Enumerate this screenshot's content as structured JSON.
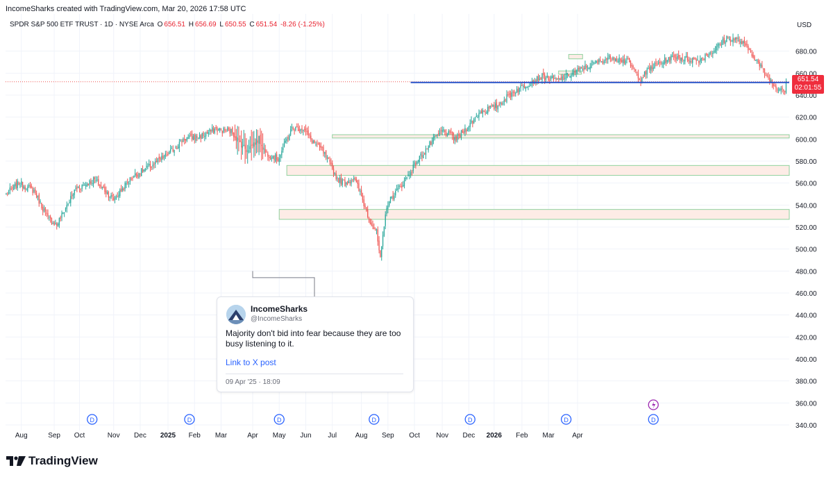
{
  "header": {
    "attribution": "IncomeSharks created with TradingView.com, Mar 20, 2026 17:58 UTC"
  },
  "symbol_bar": {
    "name": "SPDR S&P 500 ETF TRUST · 1D · NYSE Arca",
    "open_label": "O",
    "open": "656.51",
    "high_label": "H",
    "high": "656.69",
    "low_label": "L",
    "low": "650.55",
    "close_label": "C",
    "close": "651.54",
    "change": "-8.26 (-1.25%)"
  },
  "price_scale": {
    "currency": "USD",
    "last_price": "651.54",
    "countdown": "02:01:55"
  },
  "tweet": {
    "name": "IncomeSharks",
    "handle": "@IncomeSharks",
    "text": "Majority don't bid into fear because they are too busy listening to it.",
    "link_label": "Link to X post",
    "date": "09 Apr '25 · 18:09"
  },
  "footer": {
    "brand": "TradingView"
  },
  "colors": {
    "up": "#26a69a",
    "down": "#ef5350",
    "support_line": "#2753c9",
    "zone_fill": "#fdece6",
    "zone_border": "#8fd19e",
    "price_tag": "#ef2d3d",
    "dividend_marker": "#2962ff",
    "flash_marker": "#9c27b0"
  },
  "chart_data": {
    "type": "candlestick",
    "ylim": [
      340,
      700
    ],
    "y_ticks": [
      340,
      360,
      380,
      400,
      420,
      440,
      460,
      480,
      500,
      520,
      540,
      560,
      580,
      600,
      620,
      640,
      660,
      680
    ],
    "x_tick_labels": [
      {
        "label": "Aug",
        "bold": false
      },
      {
        "label": "Sep",
        "bold": false
      },
      {
        "label": "Oct",
        "bold": false
      },
      {
        "label": "Nov",
        "bold": false
      },
      {
        "label": "Dec",
        "bold": false
      },
      {
        "label": "2025",
        "bold": true
      },
      {
        "label": "Feb",
        "bold": false
      },
      {
        "label": "Mar",
        "bold": false
      },
      {
        "label": "Apr",
        "bold": false
      },
      {
        "label": "May",
        "bold": false
      },
      {
        "label": "Jun",
        "bold": false
      },
      {
        "label": "Jul",
        "bold": false
      },
      {
        "label": "Aug",
        "bold": false
      },
      {
        "label": "Sep",
        "bold": false
      },
      {
        "label": "Oct",
        "bold": false
      },
      {
        "label": "Nov",
        "bold": false
      },
      {
        "label": "Dec",
        "bold": false
      },
      {
        "label": "2026",
        "bold": true
      },
      {
        "label": "Feb",
        "bold": false
      },
      {
        "label": "Mar",
        "bold": false
      },
      {
        "label": "Apr",
        "bold": false
      }
    ],
    "path_anchors": [
      [
        0,
        550
      ],
      [
        10,
        560
      ],
      [
        22,
        553
      ],
      [
        33,
        528
      ],
      [
        40,
        522
      ],
      [
        55,
        555
      ],
      [
        70,
        563
      ],
      [
        85,
        545
      ],
      [
        100,
        566
      ],
      [
        115,
        576
      ],
      [
        128,
        586
      ],
      [
        140,
        600
      ],
      [
        155,
        603
      ],
      [
        165,
        609
      ],
      [
        178,
        607
      ],
      [
        190,
        590
      ],
      [
        200,
        600
      ],
      [
        205,
        588
      ],
      [
        215,
        582
      ],
      [
        226,
        610
      ],
      [
        235,
        610
      ],
      [
        242,
        598
      ],
      [
        250,
        590
      ],
      [
        262,
        564
      ],
      [
        268,
        560
      ],
      [
        275,
        565
      ],
      [
        280,
        551
      ],
      [
        287,
        528
      ],
      [
        293,
        515
      ],
      [
        296,
        490
      ],
      [
        301,
        540
      ],
      [
        307,
        550
      ],
      [
        314,
        560
      ],
      [
        325,
        580
      ],
      [
        335,
        595
      ],
      [
        345,
        608
      ],
      [
        356,
        600
      ],
      [
        366,
        612
      ],
      [
        375,
        625
      ],
      [
        388,
        630
      ],
      [
        400,
        642
      ],
      [
        412,
        650
      ],
      [
        424,
        657
      ],
      [
        436,
        653
      ],
      [
        448,
        660
      ],
      [
        458,
        665
      ],
      [
        468,
        670
      ],
      [
        480,
        675
      ],
      [
        492,
        670
      ],
      [
        502,
        655
      ],
      [
        510,
        665
      ],
      [
        522,
        672
      ],
      [
        530,
        675
      ],
      [
        538,
        673
      ],
      [
        548,
        672
      ],
      [
        560,
        681
      ],
      [
        570,
        692
      ],
      [
        580,
        690
      ],
      [
        590,
        678
      ],
      [
        600,
        660
      ],
      [
        608,
        648
      ],
      [
        617,
        645
      ]
    ],
    "support_line_price": 651.54,
    "current_price": 651.54,
    "zones": [
      {
        "low": 601,
        "high": 604
      },
      {
        "low": 567,
        "high": 576
      },
      {
        "low": 527,
        "high": 536
      },
      {
        "low": 673,
        "high": 677
      },
      {
        "low": 659,
        "high": 662
      }
    ],
    "dividend_markers": [
      "D",
      "D",
      "D",
      "D",
      "D",
      "D",
      "D"
    ]
  }
}
